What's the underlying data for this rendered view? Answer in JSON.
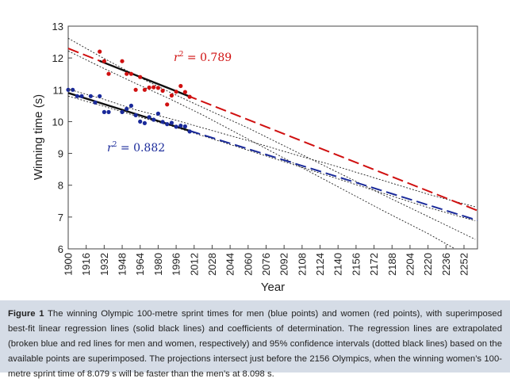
{
  "chart_data": {
    "type": "scatter",
    "xlabel": "Year",
    "ylabel": "Winning time (s)",
    "xlim": [
      1900,
      2264
    ],
    "ylim": [
      6,
      13
    ],
    "x_ticks": [
      1900,
      1916,
      1932,
      1948,
      1964,
      1980,
      1996,
      2012,
      2028,
      2044,
      2060,
      2076,
      2092,
      2108,
      2124,
      2140,
      2156,
      2172,
      2188,
      2204,
      2220,
      2236,
      2252
    ],
    "y_ticks": [
      6,
      7,
      8,
      9,
      10,
      11,
      12,
      13
    ],
    "grid": false,
    "series": [
      {
        "color": "#d01010",
        "r2_symbol": "r",
        "r2_exp": "2",
        "r2_text": " = 0.789",
        "fit_slope": -0.014,
        "fit_intercept_1900": 12.3,
        "points": [
          [
            1928,
            12.2
          ],
          [
            1932,
            11.9
          ],
          [
            1936,
            11.5
          ],
          [
            1948,
            11.9
          ],
          [
            1952,
            11.5
          ],
          [
            1956,
            11.5
          ],
          [
            1960,
            11.0
          ],
          [
            1964,
            11.4
          ],
          [
            1968,
            11.0
          ],
          [
            1972,
            11.07
          ],
          [
            1976,
            11.08
          ],
          [
            1980,
            11.06
          ],
          [
            1984,
            10.97
          ],
          [
            1988,
            10.54
          ],
          [
            1992,
            10.82
          ],
          [
            1996,
            10.94
          ],
          [
            2000,
            11.12
          ],
          [
            2004,
            10.93
          ],
          [
            2008,
            10.78
          ]
        ]
      },
      {
        "color": "#1a2a9a",
        "r2_symbol": "r",
        "r2_exp": "2",
        "r2_text": " = 0.882",
        "fit_slope": -0.011,
        "fit_intercept_1900": 10.9,
        "points": [
          [
            1900,
            11.0
          ],
          [
            1904,
            11.0
          ],
          [
            1908,
            10.8
          ],
          [
            1912,
            10.8
          ],
          [
            1920,
            10.8
          ],
          [
            1924,
            10.6
          ],
          [
            1928,
            10.8
          ],
          [
            1932,
            10.3
          ],
          [
            1936,
            10.3
          ],
          [
            1948,
            10.3
          ],
          [
            1952,
            10.4
          ],
          [
            1956,
            10.5
          ],
          [
            1960,
            10.2
          ],
          [
            1964,
            10.0
          ],
          [
            1968,
            9.95
          ],
          [
            1972,
            10.14
          ],
          [
            1976,
            10.06
          ],
          [
            1980,
            10.25
          ],
          [
            1984,
            9.99
          ],
          [
            1988,
            9.92
          ],
          [
            1992,
            9.96
          ],
          [
            1996,
            9.84
          ],
          [
            2000,
            9.87
          ],
          [
            2004,
            9.85
          ],
          [
            2008,
            9.69
          ]
        ]
      }
    ],
    "ci_curves": [
      [
        [
          1900,
          12.62
        ],
        [
          1930,
          12.02
        ],
        [
          1960,
          11.45
        ],
        [
          1990,
          10.93
        ],
        [
          2020,
          10.44
        ],
        [
          2060,
          9.8
        ],
        [
          2100,
          9.1
        ],
        [
          2140,
          8.4
        ],
        [
          2180,
          7.7
        ],
        [
          2220,
          7.02
        ],
        [
          2262,
          6.3
        ]
      ],
      [
        [
          1900,
          12.22
        ],
        [
          1930,
          11.7
        ],
        [
          1960,
          11.2
        ],
        [
          1990,
          10.72
        ],
        [
          2020,
          10.2
        ],
        [
          2060,
          9.45
        ],
        [
          2100,
          8.7
        ],
        [
          2140,
          7.95
        ],
        [
          2180,
          7.2
        ],
        [
          2220,
          6.48
        ],
        [
          2244,
          6.0
        ]
      ],
      [
        [
          1900,
          11.02
        ],
        [
          1930,
          10.72
        ],
        [
          1960,
          10.37
        ],
        [
          1990,
          10.1
        ],
        [
          2020,
          9.8
        ],
        [
          2060,
          9.4
        ],
        [
          2100,
          8.98
        ],
        [
          2140,
          8.58
        ],
        [
          2180,
          8.15
        ],
        [
          2220,
          7.72
        ],
        [
          2262,
          7.32
        ]
      ],
      [
        [
          1900,
          10.8
        ],
        [
          1930,
          10.5
        ],
        [
          1960,
          10.18
        ],
        [
          1990,
          9.88
        ],
        [
          2020,
          9.55
        ],
        [
          2060,
          9.1
        ],
        [
          2100,
          8.65
        ],
        [
          2140,
          8.2
        ],
        [
          2180,
          7.75
        ],
        [
          2220,
          7.3
        ],
        [
          2262,
          6.88
        ]
      ]
    ]
  },
  "caption": {
    "label": "Figure 1",
    "text": " The winning Olympic 100-metre sprint times for men (blue points) and women (red points), with superimposed best-fit linear regression lines (solid black lines) and coefficients of determination. The regression lines are extrapolated (broken blue and red lines for men and women, respectively) and 95% confidence intervals (dotted black lines) based on the available points are superimposed. The projections intersect just before the 2156 Olympics, when the winning women’s 100-metre sprint time of 8.079 s will be faster than the men’s at 8.098 s."
  }
}
